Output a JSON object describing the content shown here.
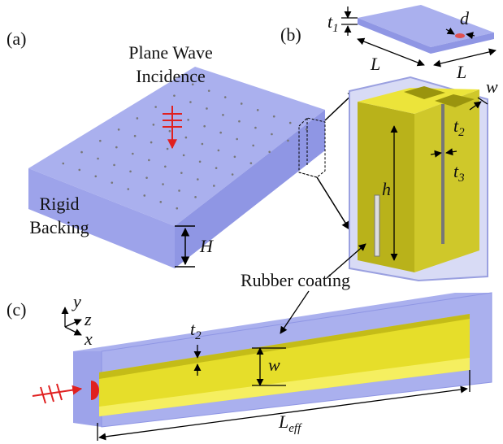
{
  "panels": {
    "a": "(a)",
    "b": "(b)",
    "c": "(c)"
  },
  "panel_a": {
    "incidence": [
      "Plane Wave",
      "Incidence"
    ],
    "backing": [
      "Rigid",
      "Backing"
    ],
    "height": "H"
  },
  "panel_b": {
    "t1": {
      "base": "t",
      "sub": "1"
    },
    "d": "d",
    "L_left": "L",
    "L_right": "L",
    "w": "w",
    "t2": {
      "base": "t",
      "sub": "2"
    },
    "t3": {
      "base": "t",
      "sub": "3"
    },
    "h": "h"
  },
  "rubber_coating": "Rubber coating",
  "panel_c": {
    "axes": {
      "y": "y",
      "z": "z",
      "x": "x"
    },
    "t2": {
      "base": "t",
      "sub": "2"
    },
    "w": "w",
    "L_eff": {
      "base": "L",
      "sub": "eff"
    }
  }
}
